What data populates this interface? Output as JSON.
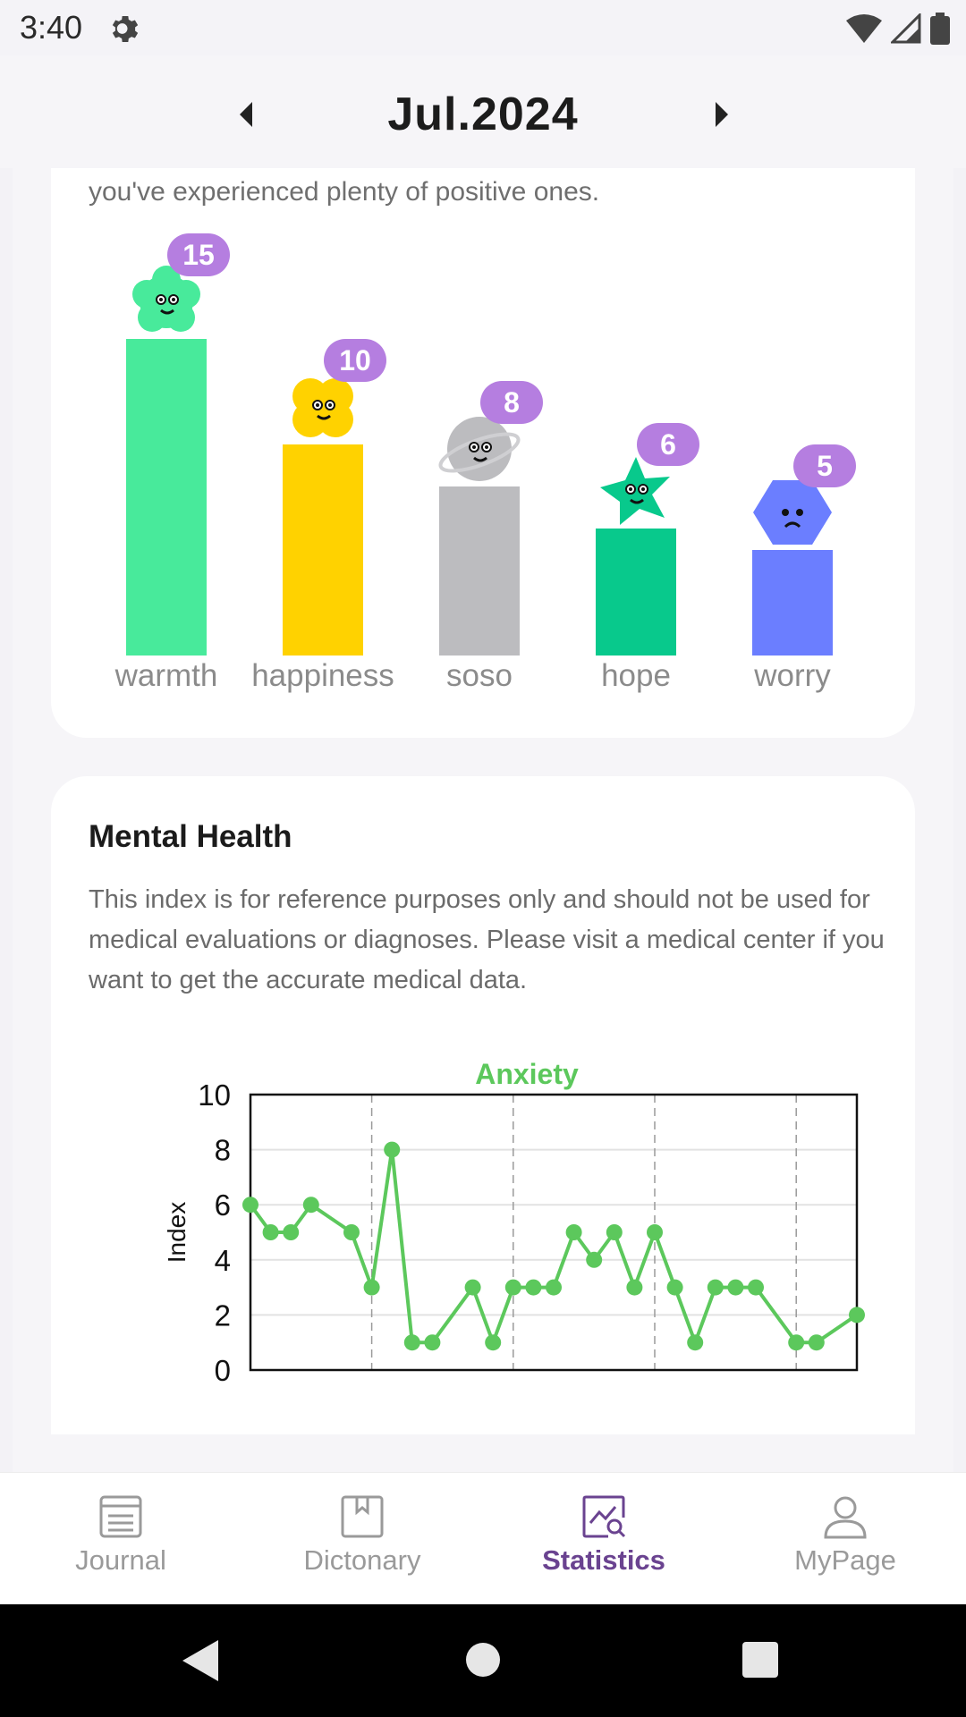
{
  "status_bar": {
    "time": "3:40"
  },
  "header": {
    "month": "Jul.2024"
  },
  "emotions": {
    "intro": "you've experienced plenty of positive ones.",
    "items": [
      {
        "label": "warmth",
        "count": "15",
        "value": 15,
        "color": "#48ea9b"
      },
      {
        "label": "happiness",
        "count": "10",
        "value": 10,
        "color": "#ffd200"
      },
      {
        "label": "soso",
        "count": "8",
        "value": 8,
        "color": "#bcbcbf"
      },
      {
        "label": "hope",
        "count": "6",
        "value": 6,
        "color": "#08c98c"
      },
      {
        "label": "worry",
        "count": "5",
        "value": 5,
        "color": "#6b7eff"
      }
    ]
  },
  "mental_health": {
    "title": "Mental Health",
    "description": "This index is for reference purposes only and should not be used for medical evaluations or diagnoses. Please visit a medical center if you want to get the accurate medical data."
  },
  "chart_data": {
    "type": "line",
    "title": "Anxiety",
    "xlabel": "",
    "ylabel": "Index",
    "ylim": [
      0,
      10
    ],
    "yticks": [
      "0",
      "2",
      "4",
      "6",
      "8",
      "10"
    ],
    "grid": true,
    "series": [
      {
        "name": "Anxiety",
        "color": "#5cc85c",
        "x": [
          1,
          2,
          3,
          4,
          6,
          7,
          8,
          9,
          10,
          12,
          13,
          14,
          15,
          16,
          17,
          18,
          19,
          20,
          21,
          22,
          23,
          24,
          25,
          26,
          28,
          29,
          31
        ],
        "values": [
          6,
          5,
          5,
          6,
          5,
          3,
          8,
          1,
          1,
          3,
          1,
          3,
          3,
          3,
          5,
          4,
          5,
          3,
          5,
          3,
          1,
          3,
          3,
          3,
          1,
          1,
          2
        ]
      }
    ]
  },
  "bottom_nav": {
    "items": [
      {
        "label": "Journal",
        "active": false
      },
      {
        "label": "Dictonary",
        "active": false
      },
      {
        "label": "Statistics",
        "active": true
      },
      {
        "label": "MyPage",
        "active": false
      }
    ]
  }
}
